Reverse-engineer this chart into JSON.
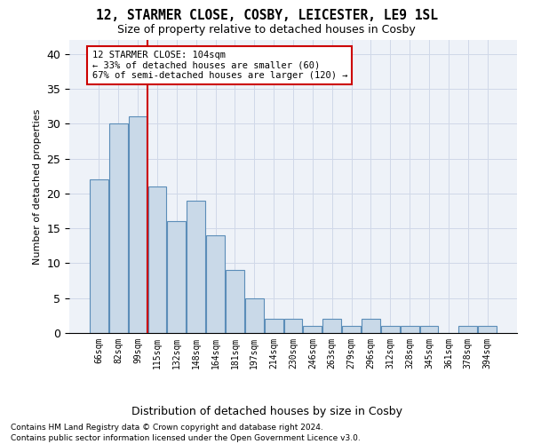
{
  "title": "12, STARMER CLOSE, COSBY, LEICESTER, LE9 1SL",
  "subtitle": "Size of property relative to detached houses in Cosby",
  "xlabel": "Distribution of detached houses by size in Cosby",
  "ylabel": "Number of detached properties",
  "footer1": "Contains HM Land Registry data © Crown copyright and database right 2024.",
  "footer2": "Contains public sector information licensed under the Open Government Licence v3.0.",
  "bin_labels": [
    "66sqm",
    "82sqm",
    "99sqm",
    "115sqm",
    "132sqm",
    "148sqm",
    "164sqm",
    "181sqm",
    "197sqm",
    "214sqm",
    "230sqm",
    "246sqm",
    "263sqm",
    "279sqm",
    "296sqm",
    "312sqm",
    "328sqm",
    "345sqm",
    "361sqm",
    "378sqm",
    "394sqm"
  ],
  "bar_heights": [
    22,
    30,
    31,
    21,
    16,
    19,
    14,
    9,
    5,
    2,
    2,
    1,
    2,
    1,
    2,
    1,
    1,
    1,
    0,
    1,
    1
  ],
  "bar_color": "#c9d9e8",
  "bar_edge_color": "#5b8db8",
  "vline_x": 2.5,
  "vline_color": "#cc0000",
  "annotation_text": "12 STARMER CLOSE: 104sqm\n← 33% of detached houses are smaller (60)\n67% of semi-detached houses are larger (120) →",
  "annotation_box_color": "#ffffff",
  "annotation_box_edge": "#cc0000",
  "ylim": [
    0,
    42
  ],
  "yticks": [
    0,
    5,
    10,
    15,
    20,
    25,
    30,
    35,
    40
  ],
  "grid_color": "#d0d8e8",
  "bg_color": "#eef2f8"
}
